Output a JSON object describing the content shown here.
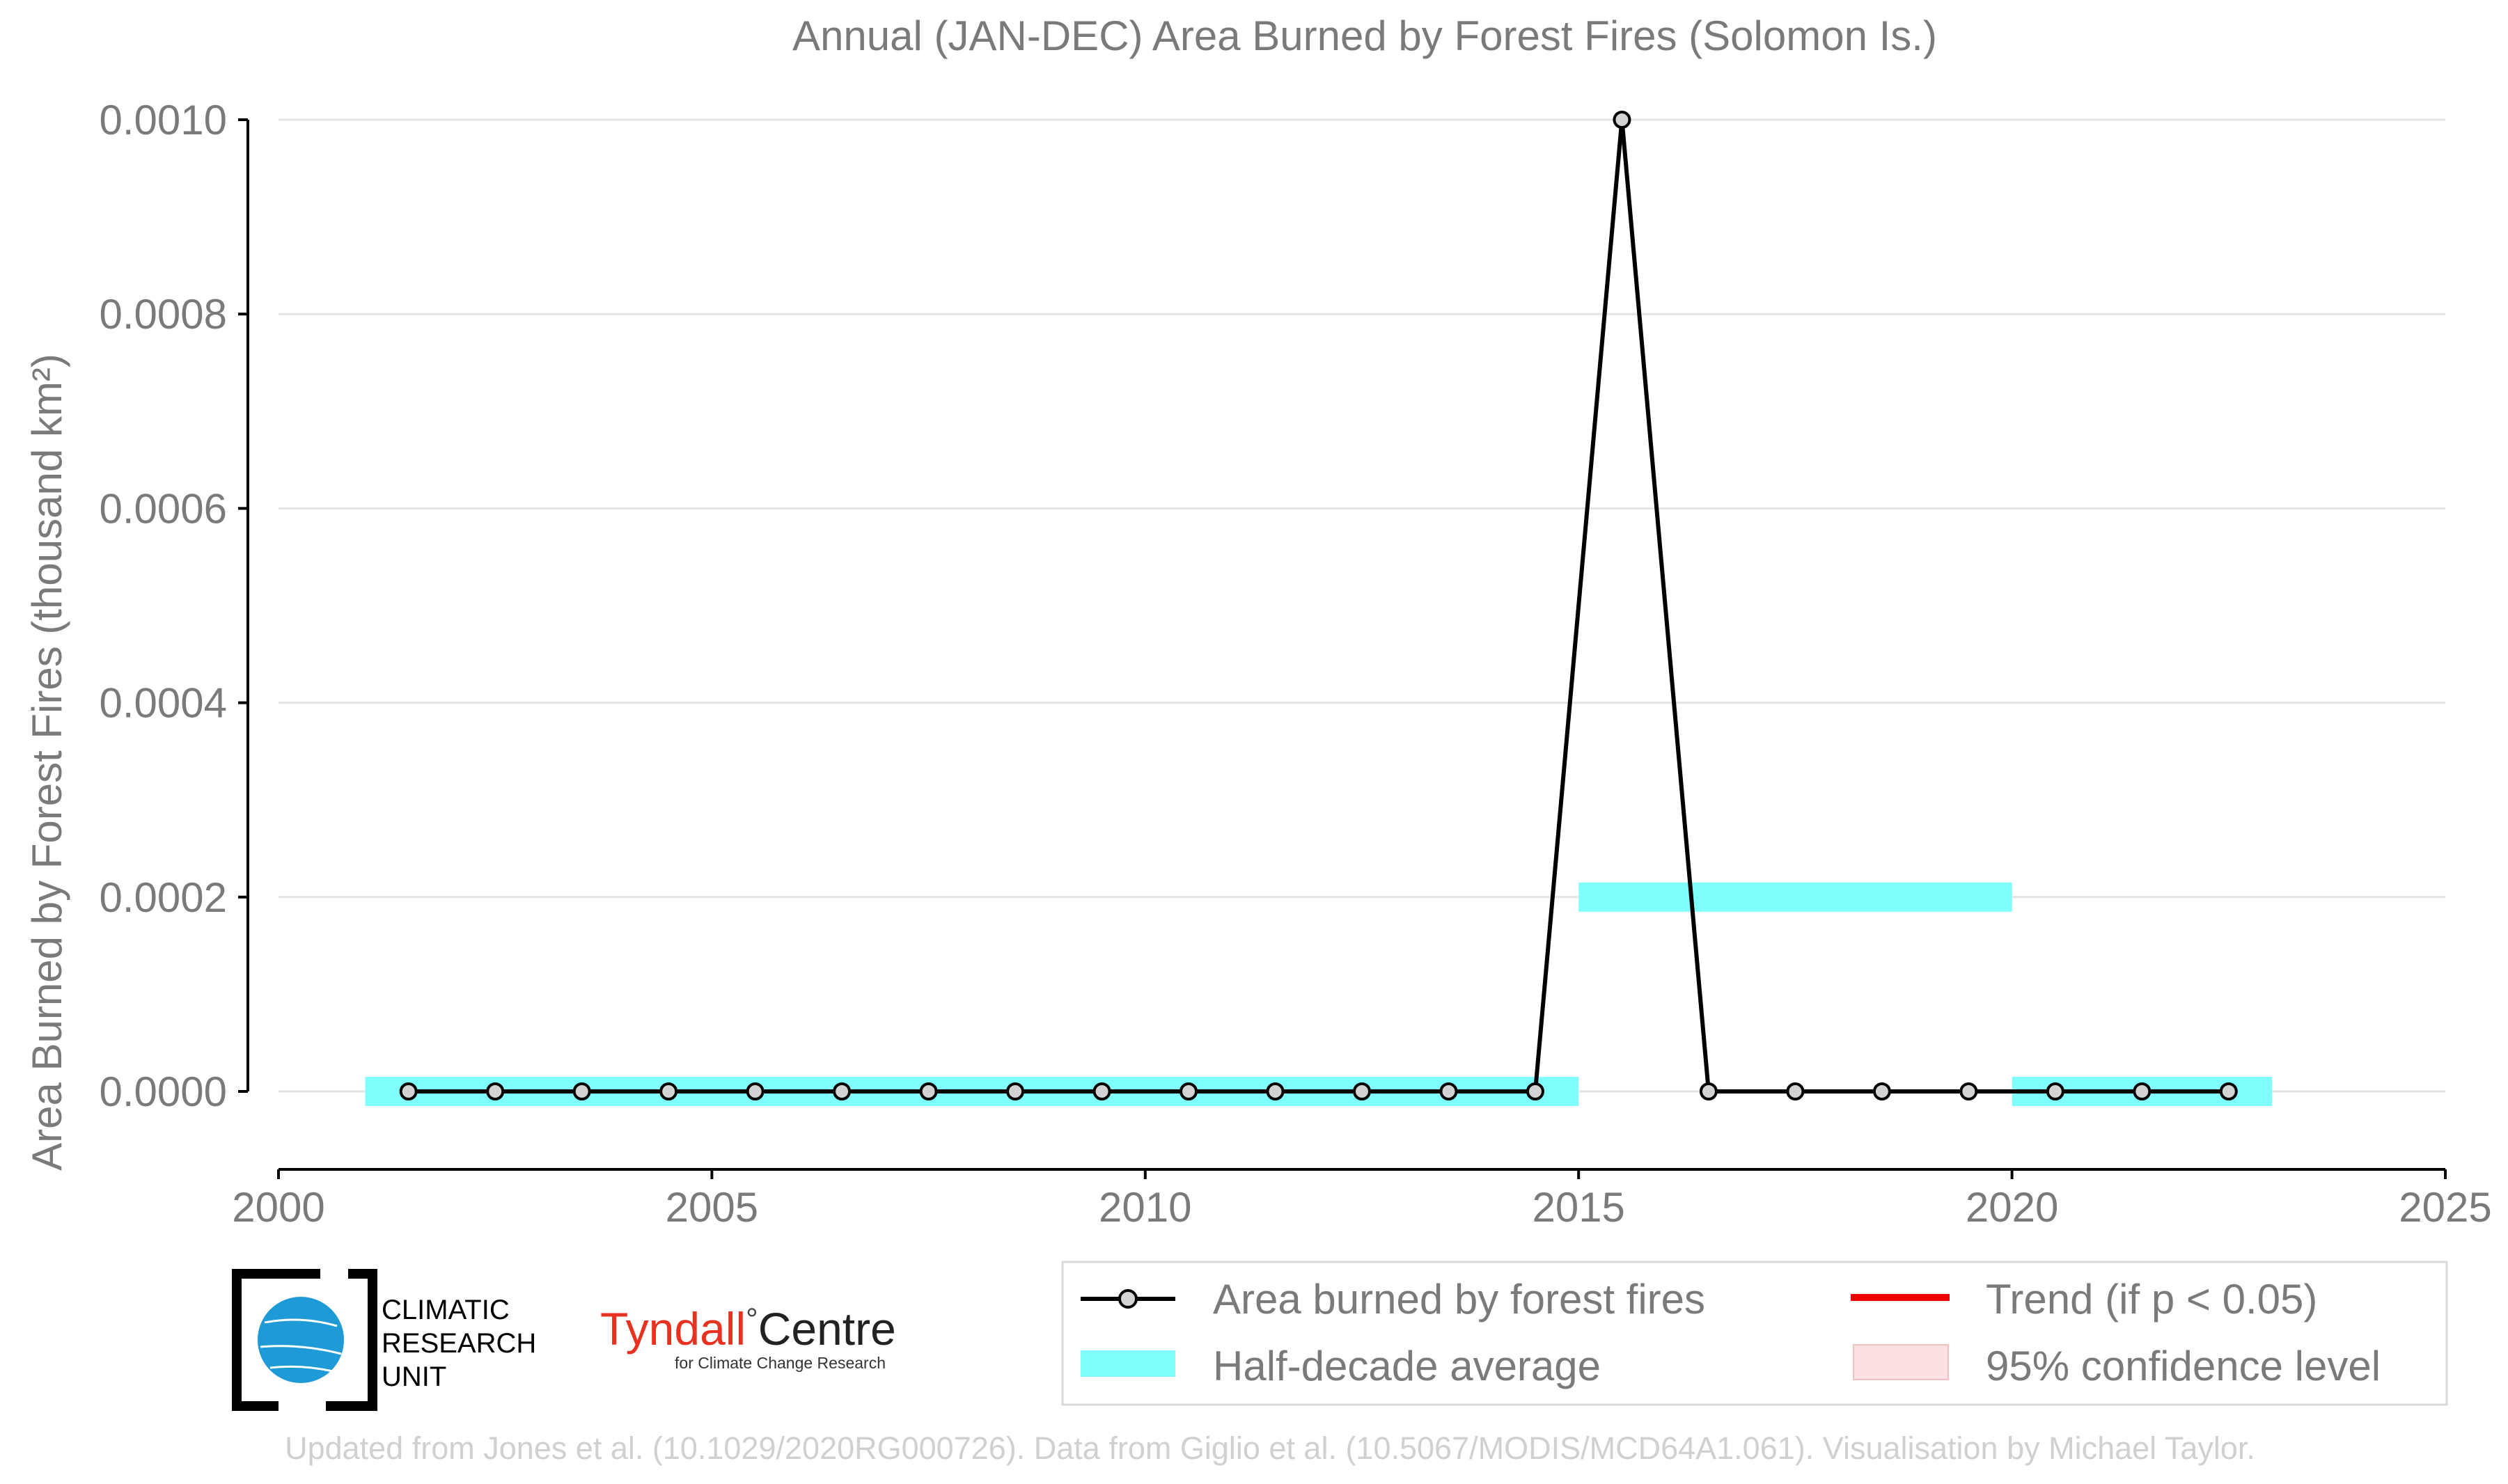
{
  "chart_data": {
    "type": "line",
    "title": "Annual (JAN-DEC) Area Burned by Forest Fires (Solomon Is.)",
    "ylabel": "Area Burned by Forest Fires (thousand km²)",
    "xlabel": "",
    "xlim": [
      2000,
      2025
    ],
    "ylim": [
      -8e-05,
      0.001
    ],
    "x_ticks": [
      2000,
      2005,
      2010,
      2015,
      2020,
      2025
    ],
    "y_ticks": [
      0.0,
      0.0002,
      0.0004,
      0.0006,
      0.0008,
      0.001
    ],
    "y_tick_labels": [
      "0.0000",
      "0.0002",
      "0.0004",
      "0.0006",
      "0.0008",
      "0.0010"
    ],
    "grid": "horizontal",
    "series": [
      {
        "name": "Area burned by forest fires",
        "x": [
          2001.5,
          2002.5,
          2003.5,
          2004.5,
          2005.5,
          2006.5,
          2007.5,
          2008.5,
          2009.5,
          2010.5,
          2011.5,
          2012.5,
          2013.5,
          2014.5,
          2015.5,
          2016.5,
          2017.5,
          2018.5,
          2019.5,
          2020.5,
          2021.5,
          2022.5
        ],
        "values": [
          0,
          0,
          0,
          0,
          0,
          0,
          0,
          0,
          0,
          0,
          0,
          0,
          0,
          0,
          0.001,
          0,
          0,
          0,
          0,
          0,
          0,
          0
        ],
        "color": "#000000"
      }
    ],
    "half_decade_average": {
      "name": "Half-decade average",
      "color": "#80ffff",
      "segments": [
        {
          "x_start": 2001,
          "x_end": 2015,
          "value": 0.0
        },
        {
          "x_start": 2015,
          "x_end": 2020,
          "value": 0.0002
        },
        {
          "x_start": 2020,
          "x_end": 2023,
          "value": 0.0
        }
      ]
    },
    "legend": {
      "placement": "bottom-right",
      "items": [
        {
          "label": "Area burned by forest fires",
          "kind": "line-marker",
          "color": "#000000"
        },
        {
          "label": "Trend (if p < 0.05)",
          "kind": "line",
          "color": "#ee0000"
        },
        {
          "label": "Half-decade average",
          "kind": "band",
          "color": "#80ffff"
        },
        {
          "label": "95% confidence level",
          "kind": "band",
          "color": "#fde0e0"
        }
      ]
    }
  },
  "logos": {
    "cru_lines": [
      "CLIMATIC",
      "RESEARCH",
      "UNIT"
    ],
    "tyndall_name": "Tyndall",
    "tyndall_degree": "°",
    "tyndall_centre": "Centre",
    "tyndall_sub": "for Climate Change Research"
  },
  "footer": {
    "credit": "Updated from Jones et al. (10.1029/2020RG000726). Data from Giglio et al. (10.5067/MODIS/MCD64A1.061). Visualisation by Michael Taylor."
  },
  "colors": {
    "text": "#7a7a7a",
    "grid": "#e4e4e4",
    "axis": "#000000",
    "marker_fill": "#d3d3d3",
    "footer": "#d0d0d0",
    "tyndall_red": "#e8321f",
    "cru_blue": "#1e9ad6"
  }
}
